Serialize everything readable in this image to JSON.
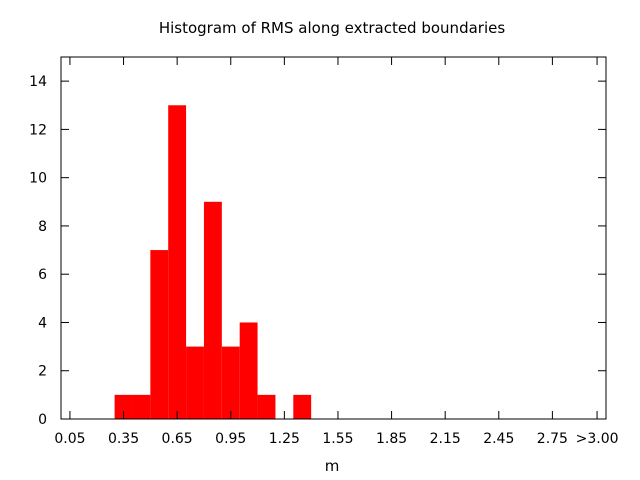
{
  "chart_data": {
    "type": "bar",
    "title": "Histogram of RMS along extracted boundaries",
    "xlabel": "m",
    "ylabel": "",
    "bin_width": 0.1,
    "bins": [
      {
        "x": 0.35,
        "count": 1
      },
      {
        "x": 0.45,
        "count": 1
      },
      {
        "x": 0.55,
        "count": 7
      },
      {
        "x": 0.65,
        "count": 13
      },
      {
        "x": 0.75,
        "count": 3
      },
      {
        "x": 0.85,
        "count": 9
      },
      {
        "x": 0.95,
        "count": 3
      },
      {
        "x": 1.05,
        "count": 4
      },
      {
        "x": 1.15,
        "count": 1
      },
      {
        "x": 1.35,
        "count": 1
      }
    ],
    "xlim": [
      0,
      3.05
    ],
    "ylim": [
      0,
      15
    ],
    "x_ticks": [
      {
        "value": 0.05,
        "label": "0.05"
      },
      {
        "value": 0.35,
        "label": "0.35"
      },
      {
        "value": 0.65,
        "label": "0.65"
      },
      {
        "value": 0.95,
        "label": "0.95"
      },
      {
        "value": 1.25,
        "label": "1.25"
      },
      {
        "value": 1.55,
        "label": "1.55"
      },
      {
        "value": 1.85,
        "label": "1.85"
      },
      {
        "value": 2.15,
        "label": "2.15"
      },
      {
        "value": 2.45,
        "label": "2.45"
      },
      {
        "value": 2.75,
        "label": "2.75"
      },
      {
        "value": 3.0,
        "label": ">3.00"
      }
    ],
    "y_ticks": [
      0,
      2,
      4,
      6,
      8,
      10,
      12,
      14
    ],
    "bar_color": "#ff0000",
    "grid": false,
    "legend": "none"
  }
}
